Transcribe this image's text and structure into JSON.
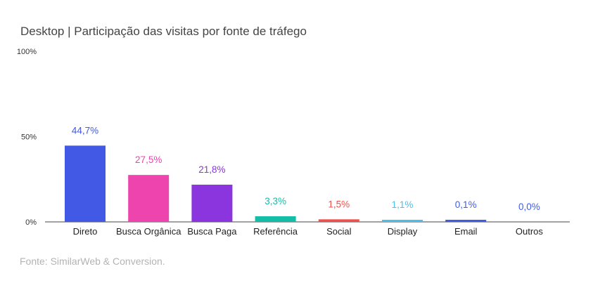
{
  "title": "Desktop | Participação das visitas por fonte de tráfego",
  "source": "Fonte: SimilarWeb & Conversion.",
  "chart_data": {
    "type": "bar",
    "title": "Desktop | Participação das visitas por fonte de tráfego",
    "xlabel": "",
    "ylabel": "",
    "ylim": [
      0,
      100
    ],
    "y_ticks": [
      "0%",
      "50%",
      "100%"
    ],
    "grid": false,
    "legend": "none",
    "categories": [
      "Direto",
      "Busca Orgânica",
      "Busca Paga",
      "Referência",
      "Social",
      "Display",
      "Email",
      "Outros"
    ],
    "values": [
      44.7,
      27.5,
      21.8,
      3.3,
      1.5,
      1.1,
      0.1,
      0.0
    ],
    "value_labels": [
      "44,7%",
      "27,5%",
      "21,8%",
      "3,3%",
      "1,5%",
      "1,1%",
      "0,1%",
      "0,0%"
    ],
    "colors": [
      "#4159e5",
      "#ee44ae",
      "#8a35dd",
      "#12bfa6",
      "#f44d4a",
      "#49bff0",
      "#3f5ce8",
      "#3f5ce8"
    ]
  }
}
